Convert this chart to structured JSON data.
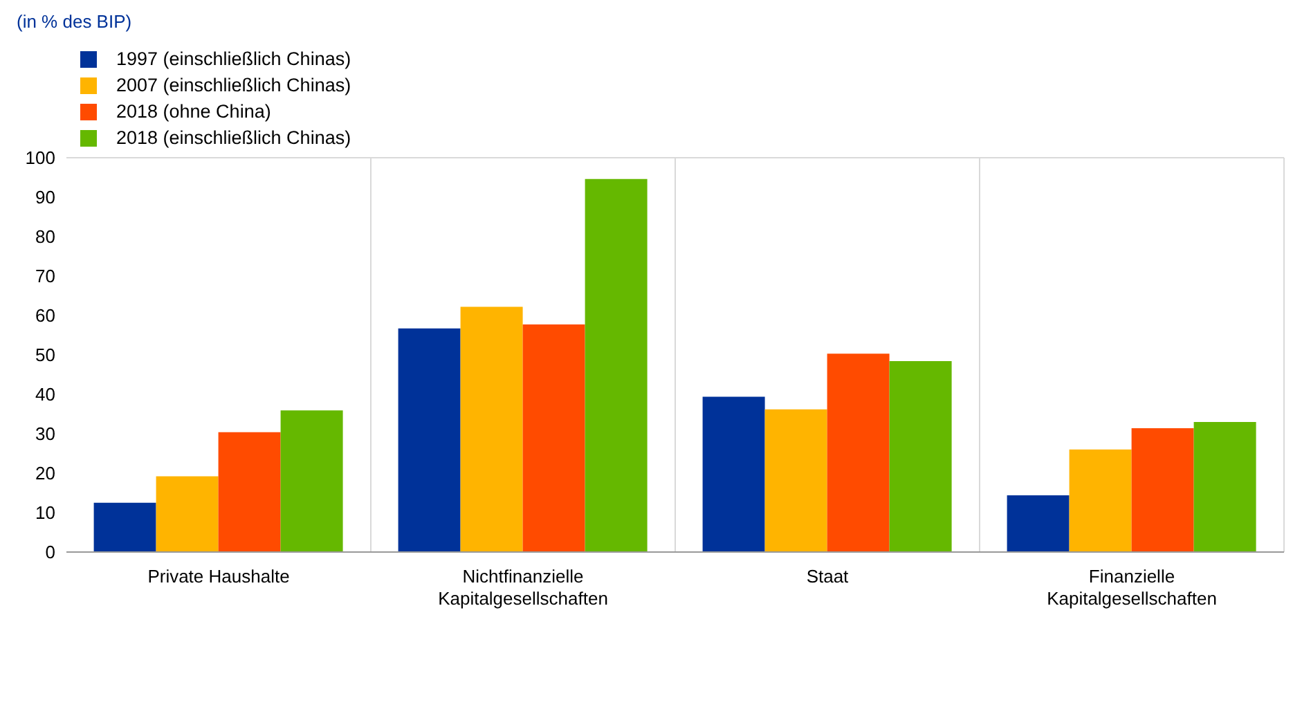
{
  "chart_data": {
    "type": "bar",
    "title": "(in % des BIP)",
    "categories": [
      "Private Haushalte",
      "Nichtfinanzielle Kapitalgesellschaften",
      "Staat",
      "Finanzielle Kapitalgesellschaften"
    ],
    "series": [
      {
        "name": "1997 (einschließlich Chinas)",
        "color": "#003299",
        "values": [
          12.5,
          56.7,
          39.4,
          14.4
        ]
      },
      {
        "name": "2007 (einschließlich Chinas)",
        "color": "#ffb400",
        "values": [
          19.2,
          62.2,
          36.2,
          26
        ]
      },
      {
        "name": "2018 (ohne China)",
        "color": "#ff4b00",
        "values": [
          30.4,
          57.7,
          50.3,
          31.4
        ]
      },
      {
        "name": "2018 (einschließlich Chinas)",
        "color": "#65b800",
        "values": [
          35.9,
          94.6,
          48.4,
          33
        ]
      }
    ],
    "ylim": [
      0,
      100
    ],
    "yticks": [
      0,
      10,
      20,
      30,
      40,
      50,
      60,
      70,
      80,
      90,
      100
    ],
    "grid": "x",
    "legend": "top left"
  }
}
